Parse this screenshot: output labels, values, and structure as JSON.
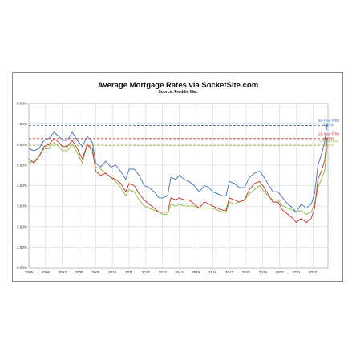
{
  "chart_data": {
    "type": "line",
    "title": "Average Mortgage Rates via SocketSite.com",
    "subtitle": "Source: Freddie Mac",
    "xlabel": "",
    "ylabel": "",
    "xlim": [
      2005,
      2022.9
    ],
    "ylim": [
      0,
      8
    ],
    "grid": true,
    "x_ticks": [
      "2005",
      "2006",
      "2007",
      "2008",
      "2009",
      "2010",
      "2011",
      "2012",
      "2013",
      "2014",
      "2015",
      "2016",
      "2017",
      "2018",
      "2019",
      "2020",
      "2021",
      "2022"
    ],
    "y_ticks": [
      "0.00%",
      "1.00%",
      "2.00%",
      "3.00%",
      "4.00%",
      "5.00%",
      "6.00%",
      "7.00%",
      "8.00%"
    ],
    "series": [
      {
        "name": "30-Year FRM",
        "end_label": "6.93%",
        "color": "#3f6fb5",
        "reference_value": 6.93,
        "x": [
          2005.0,
          2005.3,
          2005.6,
          2005.9,
          2006.2,
          2006.5,
          2006.8,
          2007.0,
          2007.3,
          2007.6,
          2007.9,
          2008.2,
          2008.5,
          2008.8,
          2009.0,
          2009.3,
          2009.6,
          2009.9,
          2010.2,
          2010.5,
          2010.8,
          2011.0,
          2011.3,
          2011.6,
          2011.9,
          2012.2,
          2012.5,
          2012.8,
          2013.0,
          2013.3,
          2013.5,
          2013.8,
          2014.0,
          2014.3,
          2014.6,
          2014.9,
          2015.2,
          2015.5,
          2015.8,
          2016.0,
          2016.3,
          2016.6,
          2016.8,
          2017.0,
          2017.3,
          2017.6,
          2017.9,
          2018.2,
          2018.5,
          2018.8,
          2019.0,
          2019.3,
          2019.6,
          2019.9,
          2020.2,
          2020.5,
          2020.8,
          2021.0,
          2021.3,
          2021.6,
          2021.9,
          2022.1,
          2022.3,
          2022.5,
          2022.7,
          2022.85
        ],
        "values": [
          5.8,
          5.7,
          5.8,
          6.2,
          6.3,
          6.6,
          6.4,
          6.2,
          6.2,
          6.6,
          6.2,
          5.9,
          6.4,
          6.1,
          5.1,
          4.9,
          5.2,
          4.9,
          5.0,
          4.7,
          4.3,
          4.8,
          4.8,
          4.5,
          4.0,
          3.9,
          3.7,
          3.4,
          3.4,
          3.5,
          4.4,
          4.3,
          4.5,
          4.3,
          4.2,
          4.0,
          3.7,
          4.0,
          3.9,
          3.7,
          3.6,
          3.5,
          3.5,
          4.2,
          4.1,
          3.9,
          3.9,
          4.4,
          4.6,
          4.7,
          4.5,
          4.1,
          3.7,
          3.7,
          3.4,
          3.1,
          2.9,
          2.7,
          3.1,
          2.9,
          3.1,
          3.6,
          5.0,
          5.5,
          6.1,
          7.0
        ]
      },
      {
        "name": "15-Year FRM",
        "end_label": "6.29%",
        "color": "#c0302b",
        "reference_value": 6.29,
        "x": [
          2005.0,
          2005.3,
          2005.6,
          2005.9,
          2006.2,
          2006.5,
          2006.8,
          2007.0,
          2007.3,
          2007.6,
          2007.9,
          2008.2,
          2008.5,
          2008.8,
          2009.0,
          2009.3,
          2009.6,
          2009.9,
          2010.2,
          2010.5,
          2010.8,
          2011.0,
          2011.3,
          2011.6,
          2011.9,
          2012.2,
          2012.5,
          2012.8,
          2013.0,
          2013.3,
          2013.5,
          2013.8,
          2014.0,
          2014.3,
          2014.6,
          2014.9,
          2015.2,
          2015.5,
          2015.8,
          2016.0,
          2016.3,
          2016.6,
          2016.8,
          2017.0,
          2017.3,
          2017.6,
          2017.9,
          2018.2,
          2018.5,
          2018.8,
          2019.0,
          2019.3,
          2019.6,
          2019.9,
          2020.2,
          2020.5,
          2020.8,
          2021.0,
          2021.3,
          2021.6,
          2021.9,
          2022.1,
          2022.3,
          2022.5,
          2022.7,
          2022.85
        ],
        "values": [
          5.3,
          5.1,
          5.4,
          5.9,
          6.0,
          6.3,
          6.1,
          5.9,
          5.9,
          6.2,
          5.8,
          5.3,
          6.0,
          5.8,
          4.7,
          4.5,
          4.6,
          4.4,
          4.3,
          4.1,
          3.7,
          4.1,
          4.0,
          3.6,
          3.3,
          3.1,
          2.9,
          2.7,
          2.7,
          2.7,
          3.4,
          3.3,
          3.4,
          3.3,
          3.3,
          3.1,
          2.9,
          3.2,
          3.1,
          3.0,
          2.9,
          2.8,
          2.8,
          3.4,
          3.3,
          3.2,
          3.3,
          3.8,
          4.1,
          4.2,
          4.0,
          3.6,
          3.2,
          3.2,
          2.8,
          2.6,
          2.4,
          2.2,
          2.4,
          2.2,
          2.4,
          2.9,
          4.3,
          4.7,
          5.2,
          6.3
        ]
      },
      {
        "name": "5-Year ARM",
        "end_label": "5.95%",
        "color": "#8bb83f",
        "reference_value": 5.95,
        "x": [
          2005.0,
          2005.3,
          2005.6,
          2005.9,
          2006.2,
          2006.5,
          2006.8,
          2007.0,
          2007.3,
          2007.6,
          2007.9,
          2008.2,
          2008.5,
          2008.8,
          2009.0,
          2009.3,
          2009.6,
          2009.9,
          2010.2,
          2010.5,
          2010.8,
          2011.0,
          2011.3,
          2011.6,
          2011.9,
          2012.2,
          2012.5,
          2012.8,
          2013.0,
          2013.3,
          2013.5,
          2013.8,
          2014.0,
          2014.3,
          2014.6,
          2014.9,
          2015.2,
          2015.5,
          2015.8,
          2016.0,
          2016.3,
          2016.6,
          2016.8,
          2017.0,
          2017.3,
          2017.6,
          2017.9,
          2018.2,
          2018.5,
          2018.8,
          2019.0,
          2019.3,
          2019.6,
          2019.9,
          2020.2,
          2020.5,
          2020.8,
          2021.0,
          2021.3,
          2021.6,
          2021.9,
          2022.1,
          2022.3,
          2022.5,
          2022.7,
          2022.85
        ],
        "values": [
          5.1,
          5.2,
          5.4,
          5.8,
          5.8,
          6.1,
          5.9,
          5.7,
          5.7,
          6.0,
          5.6,
          5.1,
          6.0,
          5.6,
          4.9,
          4.8,
          4.6,
          4.4,
          4.2,
          3.9,
          3.5,
          3.8,
          3.7,
          3.3,
          3.0,
          2.9,
          2.8,
          2.7,
          2.6,
          2.6,
          3.1,
          3.0,
          3.1,
          3.0,
          3.0,
          3.0,
          2.9,
          2.9,
          2.9,
          2.9,
          2.8,
          2.7,
          2.7,
          3.2,
          3.1,
          3.2,
          3.3,
          3.6,
          3.8,
          4.0,
          3.8,
          3.5,
          3.3,
          3.3,
          3.0,
          2.9,
          2.8,
          2.7,
          2.8,
          2.6,
          2.7,
          3.1,
          3.9,
          4.3,
          4.7,
          5.9
        ]
      }
    ]
  }
}
